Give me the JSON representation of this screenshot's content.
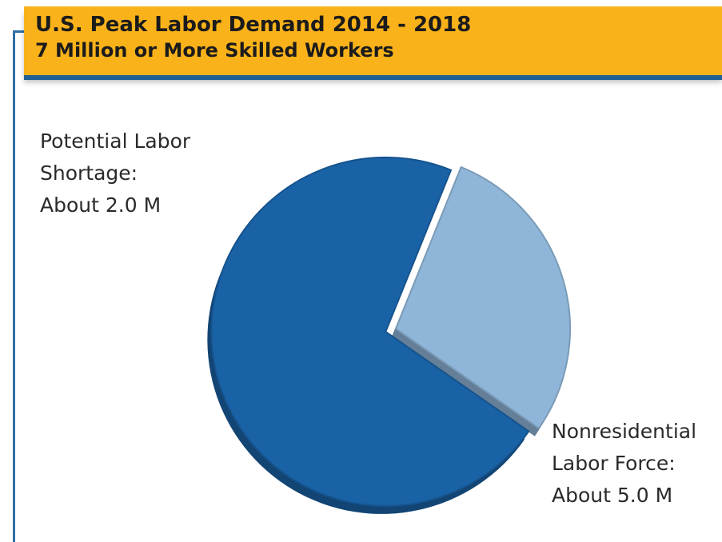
{
  "chart_data": {
    "type": "pie",
    "title": "U.S. Peak Labor Demand 2014 - 2018",
    "subtitle": "7 Million or More Skilled Workers",
    "slices": [
      {
        "label_lines": [
          "Potential Labor",
          "Shortage:",
          "About 2.0 M"
        ],
        "value": 2.0,
        "color": "#8fb6d8",
        "exploded": true
      },
      {
        "label_lines": [
          "Nonresidential",
          "Labor Force:",
          "About 5.0 M"
        ],
        "value": 5.0,
        "color": "#1a62a6",
        "exploded": false
      }
    ]
  }
}
